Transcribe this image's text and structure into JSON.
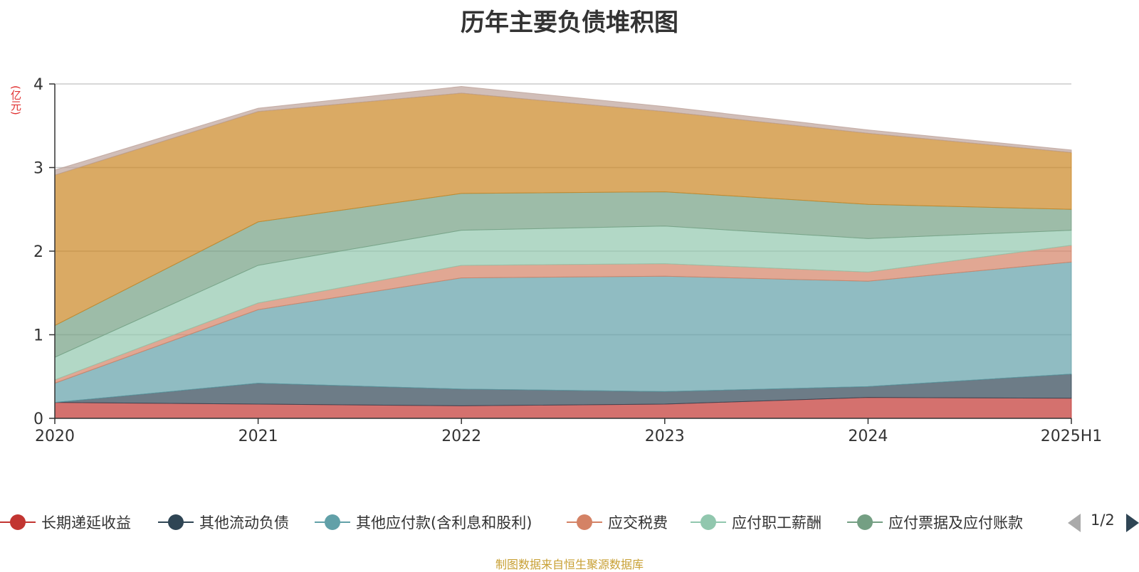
{
  "chart_data": {
    "type": "area",
    "stacked": true,
    "title": "历年主要负债堆积图",
    "unit_label": "(亿元)",
    "categories": [
      "2020",
      "2021",
      "2022",
      "2023",
      "2024",
      "2025H1"
    ],
    "y_ticks": [
      "0",
      "1",
      "2",
      "3",
      "4"
    ],
    "ylim": [
      0,
      4
    ],
    "grid": true,
    "series": [
      {
        "name": "长期递延收益",
        "color": "#c23531",
        "values": [
          0.19,
          0.17,
          0.15,
          0.17,
          0.25,
          0.24
        ]
      },
      {
        "name": "其他流动负债",
        "color": "#2f4554",
        "values": [
          0.0,
          0.25,
          0.2,
          0.15,
          0.13,
          0.29
        ]
      },
      {
        "name": "其他应付款(含利息和股利)",
        "color": "#61a0a8",
        "values": [
          0.23,
          0.88,
          1.33,
          1.38,
          1.26,
          1.34
        ]
      },
      {
        "name": "应交税费",
        "color": "#d48265",
        "values": [
          0.04,
          0.08,
          0.15,
          0.15,
          0.11,
          0.2
        ]
      },
      {
        "name": "应付职工薪酬",
        "color": "#91c7ae",
        "values": [
          0.27,
          0.45,
          0.42,
          0.45,
          0.4,
          0.18
        ]
      },
      {
        "name": "应付票据及应付账款",
        "color": "#749f83",
        "values": [
          0.38,
          0.52,
          0.44,
          0.41,
          0.41,
          0.25
        ]
      },
      {
        "name": "",
        "color": "#ca8622",
        "values": [
          1.8,
          1.32,
          1.2,
          0.96,
          0.85,
          0.68
        ]
      },
      {
        "name": "",
        "color": "#bda29a",
        "values": [
          0.06,
          0.04,
          0.08,
          0.06,
          0.04,
          0.03
        ]
      }
    ],
    "legend_placement": "bottom",
    "legend_page": "1/2"
  },
  "footer": "制图数据来自恒生聚源数据库"
}
